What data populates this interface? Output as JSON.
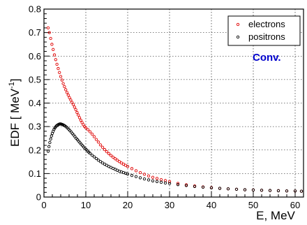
{
  "chart_data": {
    "type": "scatter",
    "title": "",
    "xlabel": "E, MeV",
    "ylabel": "EDF [ MeV",
    "ylabel_superscript": "-1",
    "ylabel_close": "]",
    "xlim": [
      0,
      62
    ],
    "ylim": [
      0,
      0.8
    ],
    "x_ticks": [
      0,
      10,
      20,
      30,
      40,
      50,
      60
    ],
    "y_ticks": [
      0,
      0.1,
      0.2,
      0.3,
      0.4,
      0.5,
      0.6,
      0.7,
      0.8
    ],
    "x_tick_labels": [
      "0",
      "10",
      "20",
      "30",
      "40",
      "50",
      "60"
    ],
    "y_tick_labels": [
      "0",
      "0.1",
      "0.2",
      "0.3",
      "0.4",
      "0.5",
      "0.6",
      "0.7",
      "0.8"
    ],
    "grid": true,
    "legend_position": "top-right",
    "annotation": "Conv.",
    "series": [
      {
        "name": "electrons",
        "color": "#e00000",
        "marker": "open-circle",
        "x": [
          1.0,
          1.3,
          1.6,
          1.9,
          2.2,
          2.5,
          2.8,
          3.1,
          3.4,
          3.7,
          4.0,
          4.3,
          4.6,
          4.9,
          5.2,
          5.5,
          5.8,
          6.1,
          6.4,
          6.7,
          7.0,
          7.3,
          7.6,
          7.9,
          8.2,
          8.5,
          8.8,
          9.1,
          9.4,
          9.7,
          10.0,
          10.5,
          11.0,
          11.5,
          12.0,
          12.5,
          13.0,
          13.5,
          14.0,
          14.5,
          15.0,
          15.5,
          16.0,
          16.5,
          17.0,
          17.5,
          18.0,
          18.5,
          19.0,
          19.5,
          20.0,
          21.0,
          22.0,
          23.0,
          24.0,
          25.0,
          26.0,
          27.0,
          28.0,
          29.0,
          30.0,
          32.0,
          34.0,
          36.0,
          38.0,
          40.0,
          42.0,
          44.0,
          46.0,
          48.0,
          50.0,
          52.0,
          54.0,
          56.0,
          58.0,
          60.0,
          61.5
        ],
        "y": [
          0.72,
          0.7,
          0.675,
          0.65,
          0.628,
          0.605,
          0.585,
          0.565,
          0.547,
          0.53,
          0.513,
          0.498,
          0.483,
          0.47,
          0.457,
          0.445,
          0.434,
          0.423,
          0.413,
          0.403,
          0.394,
          0.383,
          0.372,
          0.36,
          0.349,
          0.338,
          0.327,
          0.317,
          0.308,
          0.3,
          0.295,
          0.287,
          0.278,
          0.268,
          0.257,
          0.245,
          0.234,
          0.222,
          0.212,
          0.202,
          0.193,
          0.185,
          0.177,
          0.17,
          0.163,
          0.157,
          0.151,
          0.145,
          0.14,
          0.135,
          0.13,
          0.121,
          0.112,
          0.104,
          0.097,
          0.09,
          0.084,
          0.079,
          0.074,
          0.07,
          0.066,
          0.058,
          0.052,
          0.047,
          0.043,
          0.04,
          0.037,
          0.035,
          0.033,
          0.031,
          0.03,
          0.029,
          0.028,
          0.027,
          0.026,
          0.026,
          0.025
        ]
      },
      {
        "name": "positrons",
        "color": "#000000",
        "marker": "open-circle",
        "x": [
          1.0,
          1.2,
          1.4,
          1.6,
          1.8,
          2.0,
          2.2,
          2.4,
          2.6,
          2.8,
          3.0,
          3.2,
          3.4,
          3.6,
          3.8,
          4.0,
          4.2,
          4.4,
          4.6,
          4.8,
          5.0,
          5.3,
          5.6,
          5.9,
          6.2,
          6.5,
          6.8,
          7.1,
          7.4,
          7.7,
          8.0,
          8.3,
          8.6,
          8.9,
          9.2,
          9.5,
          9.8,
          10.1,
          10.4,
          10.7,
          11.0,
          11.5,
          12.0,
          12.5,
          13.0,
          13.5,
          14.0,
          14.5,
          15.0,
          15.5,
          16.0,
          16.5,
          17.0,
          17.5,
          18.0,
          18.5,
          19.0,
          19.5,
          20.0,
          21.0,
          22.0,
          23.0,
          24.0,
          25.0,
          26.0,
          27.0,
          28.0,
          29.0,
          30.0,
          32.0,
          34.0,
          36.0,
          38.0,
          40.0,
          42.0,
          44.0,
          46.0,
          48.0,
          50.0,
          52.0,
          54.0,
          56.0,
          58.0,
          60.0,
          61.5
        ],
        "y": [
          0.195,
          0.215,
          0.232,
          0.247,
          0.26,
          0.271,
          0.28,
          0.288,
          0.294,
          0.299,
          0.303,
          0.306,
          0.308,
          0.31,
          0.311,
          0.311,
          0.31,
          0.309,
          0.307,
          0.305,
          0.303,
          0.299,
          0.294,
          0.289,
          0.283,
          0.277,
          0.27,
          0.264,
          0.257,
          0.25,
          0.244,
          0.238,
          0.231,
          0.225,
          0.219,
          0.213,
          0.207,
          0.202,
          0.196,
          0.191,
          0.186,
          0.178,
          0.171,
          0.164,
          0.157,
          0.151,
          0.145,
          0.14,
          0.135,
          0.13,
          0.126,
          0.122,
          0.118,
          0.114,
          0.11,
          0.107,
          0.104,
          0.101,
          0.098,
          0.092,
          0.087,
          0.082,
          0.077,
          0.073,
          0.069,
          0.066,
          0.063,
          0.06,
          0.058,
          0.053,
          0.049,
          0.045,
          0.042,
          0.039,
          0.037,
          0.035,
          0.033,
          0.031,
          0.03,
          0.029,
          0.028,
          0.027,
          0.026,
          0.026,
          0.025
        ]
      }
    ]
  }
}
